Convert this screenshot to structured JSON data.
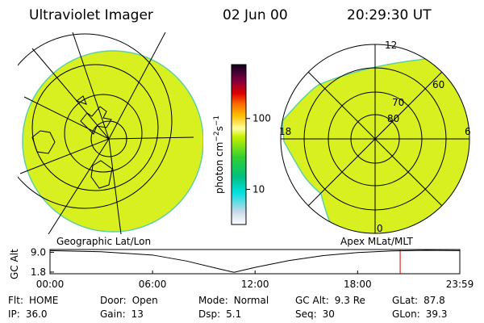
{
  "header": {
    "title": "Ultraviolet Imager",
    "date": "02 Jun 00",
    "time": "20:29:30 UT"
  },
  "colorbar": {
    "label": [
      "photon cm",
      "−2",
      "s",
      "−1"
    ],
    "scale": "log",
    "lim": [
      3.2,
      575
    ],
    "ticks": [
      10,
      100
    ]
  },
  "left_panel": {
    "label": "Geographic Lat/Lon"
  },
  "right_panel": {
    "label": "Apex MLat/MLT",
    "mlt_labels": [
      "12",
      "18",
      "6",
      "0"
    ],
    "lat_labels": [
      "80",
      "70",
      "60"
    ]
  },
  "altitude_plot": {
    "ylabel": "GC Alt",
    "yticks": [
      {
        "value": 9,
        "label": "9.0"
      },
      1.8
    ],
    "ylim": [
      1.2,
      10.0
    ],
    "xticks": [
      {
        "value": 0,
        "label": "00:00"
      },
      {
        "value": 6,
        "label": "06:00"
      },
      {
        "value": 12,
        "label": "12:00"
      },
      {
        "value": 18,
        "label": "18:00"
      },
      {
        "value": 23.98,
        "label": "23:59"
      }
    ],
    "xlim": [
      0,
      23.98
    ],
    "x": [
      0,
      3,
      6,
      8,
      10,
      10.77,
      12,
      14,
      16,
      18,
      20,
      22,
      23.98
    ],
    "values": [
      9.6,
      9.2,
      8.0,
      5.8,
      2.8,
      1.7,
      3.5,
      6.0,
      7.8,
      8.9,
      9.5,
      9.7,
      9.6
    ],
    "marker": 20.49,
    "marker_color": "#d00000",
    "color": "#000000"
  },
  "info": [
    [
      {
        "label": "Flt:",
        "value": "HOME"
      },
      {
        "label": "Door:",
        "value": "Open"
      },
      {
        "label": "Mode:",
        "value": "Normal"
      },
      {
        "label": "GC Alt:",
        "value": "9.3 Re"
      },
      {
        "label": "GLat:",
        "value": "87.8"
      }
    ],
    [
      {
        "label": "IP:",
        "value": "36.0"
      },
      {
        "label": "Gain:",
        "value": "13"
      },
      {
        "label": "Dsp:",
        "value": "5.1"
      },
      {
        "label": "Seq:",
        "value": "30"
      },
      {
        "label": "GLon:",
        "value": "39.3"
      }
    ]
  ]
}
